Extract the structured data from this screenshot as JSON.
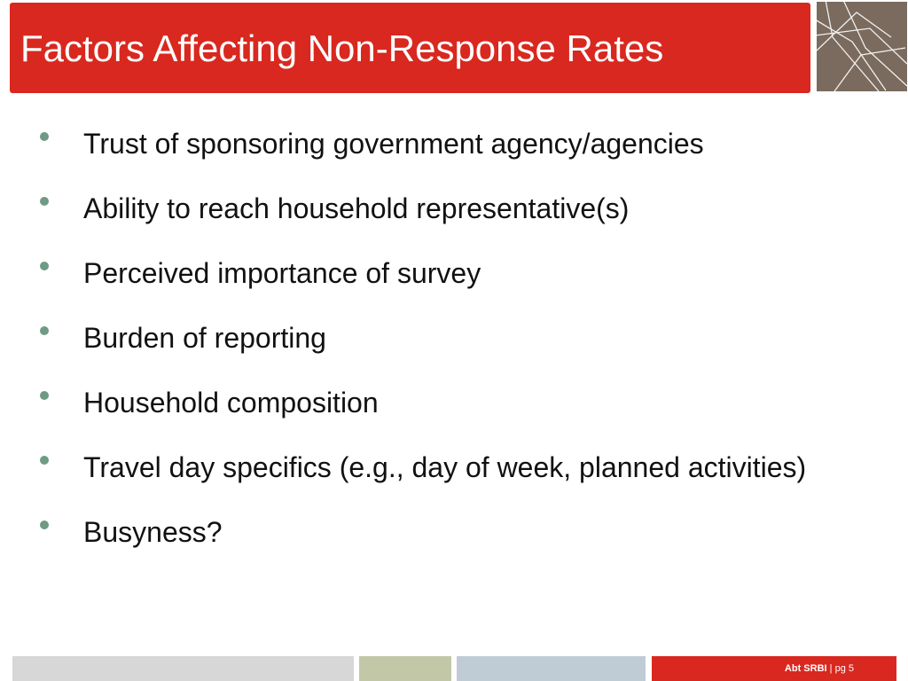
{
  "slide": {
    "title": "Factors Affecting Non-Response Rates",
    "logo_icon": "abstract-lines-logo-icon",
    "bullets": [
      {
        "text": "Trust of sponsoring government agency/agencies"
      },
      {
        "text": "Ability to reach household representative(s)"
      },
      {
        "text": "Perceived importance of survey"
      },
      {
        "text": "Burden of reporting"
      },
      {
        "text": "Household composition"
      },
      {
        "text": "Travel day specifics (e.g., day of week, planned activities)"
      },
      {
        "text": "Busyness?"
      }
    ]
  },
  "footer": {
    "brand": "Abt SRBI",
    "separator": " | ",
    "page": "pg 5"
  },
  "colors": {
    "accent_red": "#d9281f",
    "logo_brown": "#7a6b5e",
    "bullet_green": "#6f9a86",
    "footer_gray": "#d7d7d7",
    "footer_olive": "#c2c7a8",
    "footer_blue": "#bfccd6"
  }
}
